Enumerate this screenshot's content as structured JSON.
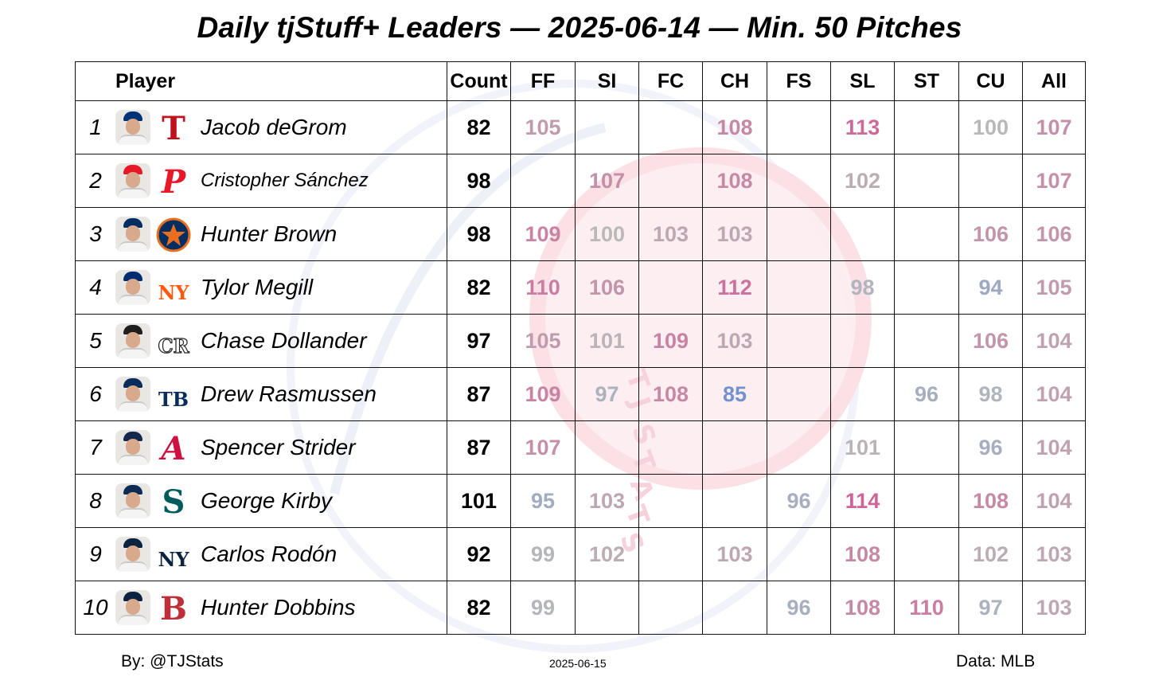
{
  "title": "Daily tjStuff+ Leaders — 2025-06-14 — Min. 50 Pitches",
  "footer": {
    "by": "By: @TJStats",
    "date": "2025-06-15",
    "source": "Data: MLB"
  },
  "watermark_text": "TJSTATS",
  "chart_data": {
    "type": "table",
    "columns": [
      "Player",
      "Count",
      "FF",
      "SI",
      "FC",
      "CH",
      "FS",
      "SL",
      "ST",
      "CU",
      "All"
    ],
    "rows": [
      {
        "rank": "1",
        "name": "Jacob deGrom",
        "team": "TEX",
        "logo_icon": "rangers-t-logo",
        "count": "82",
        "values": {
          "FF": "105",
          "SI": "",
          "FC": "",
          "CH": "108",
          "FS": "",
          "SL": "113",
          "ST": "",
          "CU": "100",
          "All": "107"
        }
      },
      {
        "rank": "2",
        "name": "Cristopher Sánchez",
        "team": "PHI",
        "logo_icon": "phillies-p-logo",
        "count": "98",
        "values": {
          "FF": "",
          "SI": "107",
          "FC": "",
          "CH": "108",
          "FS": "",
          "SL": "102",
          "ST": "",
          "CU": "",
          "All": "107"
        }
      },
      {
        "rank": "3",
        "name": "Hunter Brown",
        "team": "HOU",
        "logo_icon": "astros-star-logo",
        "count": "98",
        "values": {
          "FF": "109",
          "SI": "100",
          "FC": "103",
          "CH": "103",
          "FS": "",
          "SL": "",
          "ST": "",
          "CU": "106",
          "All": "106"
        }
      },
      {
        "rank": "4",
        "name": "Tylor Megill",
        "team": "NYM",
        "logo_icon": "mets-ny-logo",
        "count": "82",
        "values": {
          "FF": "110",
          "SI": "106",
          "FC": "",
          "CH": "112",
          "FS": "",
          "SL": "98",
          "ST": "",
          "CU": "94",
          "All": "105"
        }
      },
      {
        "rank": "5",
        "name": "Chase Dollander",
        "team": "COL",
        "logo_icon": "rockies-cr-logo",
        "count": "97",
        "values": {
          "FF": "105",
          "SI": "101",
          "FC": "109",
          "CH": "103",
          "FS": "",
          "SL": "",
          "ST": "",
          "CU": "106",
          "All": "104"
        }
      },
      {
        "rank": "6",
        "name": "Drew Rasmussen",
        "team": "TB",
        "logo_icon": "rays-tb-logo",
        "count": "87",
        "values": {
          "FF": "109",
          "SI": "97",
          "FC": "108",
          "CH": "85",
          "FS": "",
          "SL": "",
          "ST": "96",
          "CU": "98",
          "All": "104"
        }
      },
      {
        "rank": "7",
        "name": "Spencer Strider",
        "team": "ATL",
        "logo_icon": "braves-a-logo",
        "count": "87",
        "values": {
          "FF": "107",
          "SI": "",
          "FC": "",
          "CH": "",
          "FS": "",
          "SL": "101",
          "ST": "",
          "CU": "96",
          "All": "104"
        }
      },
      {
        "rank": "8",
        "name": "George Kirby",
        "team": "SEA",
        "logo_icon": "mariners-s-logo",
        "count": "101",
        "values": {
          "FF": "95",
          "SI": "103",
          "FC": "",
          "CH": "",
          "FS": "96",
          "SL": "114",
          "ST": "",
          "CU": "108",
          "All": "104"
        }
      },
      {
        "rank": "9",
        "name": "Carlos Rodón",
        "team": "NYY",
        "logo_icon": "yankees-ny-logo",
        "count": "92",
        "values": {
          "FF": "99",
          "SI": "102",
          "FC": "",
          "CH": "103",
          "FS": "",
          "SL": "108",
          "ST": "",
          "CU": "102",
          "All": "103"
        }
      },
      {
        "rank": "10",
        "name": "Hunter Dobbins",
        "team": "BOS",
        "logo_icon": "redsox-b-logo",
        "count": "82",
        "values": {
          "FF": "99",
          "SI": "",
          "FC": "",
          "CH": "",
          "FS": "96",
          "SL": "108",
          "ST": "110",
          "CU": "97",
          "All": "103"
        }
      }
    ],
    "color_scale": {
      "low": "#5b84d6",
      "mid": "#b9b9b9",
      "high": "#d6418a",
      "domain": [
        80,
        100,
        120
      ]
    },
    "team_colors": {
      "TEX": "#c0111f",
      "PHI": "#e81828",
      "HOU": "#eb6e1f",
      "NYM": "#ff5910",
      "COL": "#333366",
      "TB": "#092c5c",
      "ATL": "#ce1141",
      "SEA": "#005c5c",
      "NYY": "#0c2340",
      "BOS": "#bd3039"
    },
    "cap_colors": {
      "TEX": "#003278",
      "PHI": "#e81828",
      "HOU": "#002d62",
      "NYM": "#002d72",
      "COL": "#1e1e1e",
      "TB": "#092c5c",
      "ATL": "#13274f",
      "SEA": "#0c2c56",
      "NYY": "#0c2340",
      "BOS": "#0c2340"
    }
  }
}
